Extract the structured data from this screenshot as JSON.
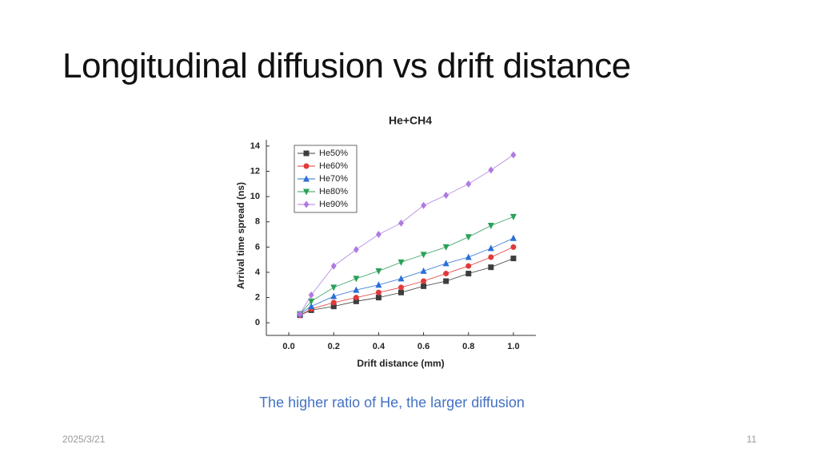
{
  "slide": {
    "title": "Longitudinal diffusion vs drift distance",
    "caption": "The higher ratio of He, the larger diffusion",
    "date": "2025/3/21",
    "page": "11"
  },
  "chart_data": {
    "type": "line",
    "title": "He+CH4",
    "x_label": "Drift distance (mm)",
    "y_label": "Arrival time spread (ns)",
    "x": [
      0.05,
      0.1,
      0.2,
      0.3,
      0.4,
      0.5,
      0.6,
      0.7,
      0.8,
      0.9,
      1.0
    ],
    "series": [
      {
        "name": "He50%",
        "color": "#3d3d3d",
        "marker": "square",
        "values": [
          0.6,
          1.0,
          1.3,
          1.7,
          2.0,
          2.4,
          2.9,
          3.3,
          3.9,
          4.4,
          5.1
        ]
      },
      {
        "name": "He60%",
        "color": "#e03a3a",
        "marker": "circle",
        "values": [
          0.6,
          1.1,
          1.6,
          2.0,
          2.4,
          2.8,
          3.3,
          3.9,
          4.5,
          5.2,
          6.0
        ]
      },
      {
        "name": "He70%",
        "color": "#2a6fd6",
        "marker": "triangle-up",
        "values": [
          0.7,
          1.3,
          2.1,
          2.6,
          3.0,
          3.5,
          4.1,
          4.7,
          5.2,
          5.9,
          6.7
        ]
      },
      {
        "name": "He80%",
        "color": "#2ca05a",
        "marker": "triangle-down",
        "values": [
          0.7,
          1.7,
          2.8,
          3.5,
          4.1,
          4.8,
          5.4,
          6.0,
          6.8,
          7.7,
          8.4
        ]
      },
      {
        "name": "He90%",
        "color": "#b07be0",
        "marker": "diamond",
        "values": [
          0.7,
          2.2,
          4.5,
          5.8,
          7.0,
          7.9,
          9.3,
          10.1,
          11.0,
          12.1,
          13.3
        ]
      }
    ],
    "xlim": [
      -0.1,
      1.1
    ],
    "xticks": [
      {
        "value": 0,
        "label": "0.0"
      },
      0.2,
      0.4,
      0.6,
      0.8,
      {
        "value": 1,
        "label": "1.0"
      }
    ],
    "ylim": [
      -1,
      14.5
    ],
    "yticks": [
      0,
      2,
      4,
      6,
      8,
      10,
      12,
      14
    ],
    "legend": "upper-left",
    "grid": false
  }
}
